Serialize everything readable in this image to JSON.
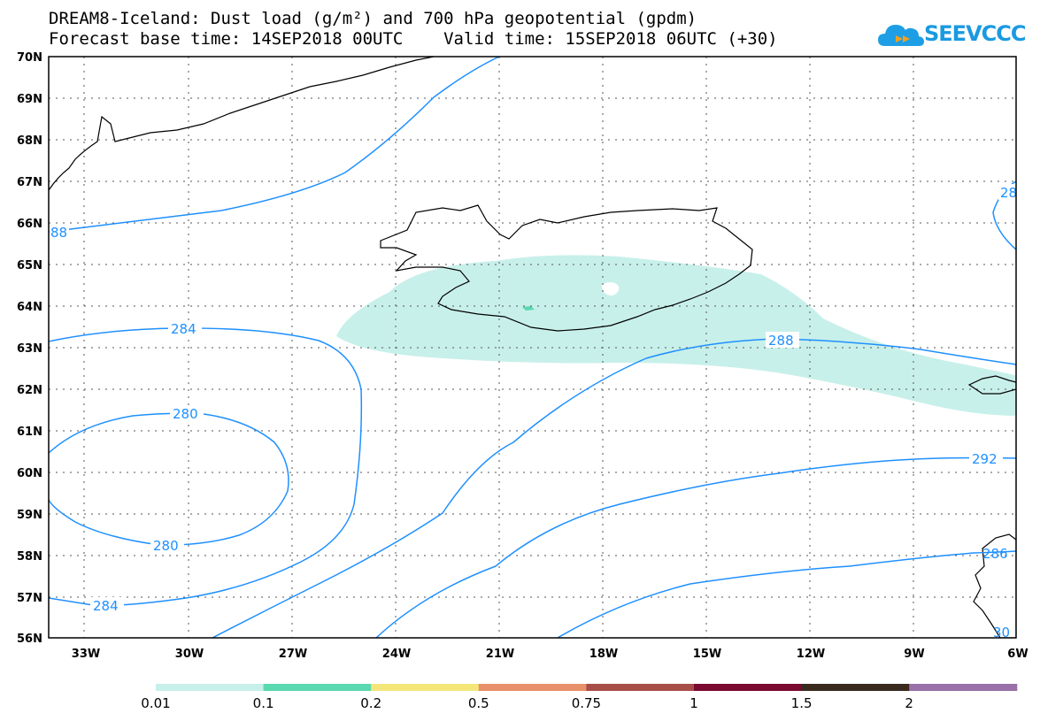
{
  "title": {
    "line1": "DREAM8-Iceland: Dust load (g/m²) and 700 hPa geopotential (gpdm)",
    "line2": "Forecast base time: 14SEP2018 00UTC    Valid time: 15SEP2018 06UTC (+30)"
  },
  "logo": {
    "text": "SEEVCCC",
    "icon": "cloud-icon",
    "color": "#1e9ee4"
  },
  "map": {
    "lat_labels": [
      "70N",
      "69N",
      "68N",
      "67N",
      "66N",
      "65N",
      "64N",
      "63N",
      "62N",
      "61N",
      "60N",
      "59N",
      "58N",
      "57N",
      "56N"
    ],
    "lon_labels": [
      "33W",
      "30W",
      "27W",
      "24W",
      "21W",
      "18W",
      "15W",
      "12W",
      "9W",
      "6W"
    ],
    "contour_color": "#1e90ff",
    "contour_labels": [
      "284",
      "280",
      "280",
      "284",
      "288",
      "292",
      "88",
      "28",
      "286",
      "30"
    ]
  },
  "colorbar": {
    "labels": [
      "0.01",
      "0.1",
      "0.2",
      "0.5",
      "0.75",
      "1",
      "1.5",
      "2"
    ],
    "colors": [
      "#c8f0ea",
      "#5ad8b0",
      "#f5e67a",
      "#e8906a",
      "#a84e48",
      "#7a0a30",
      "#3a2a1e",
      "#9a70a8"
    ]
  }
}
